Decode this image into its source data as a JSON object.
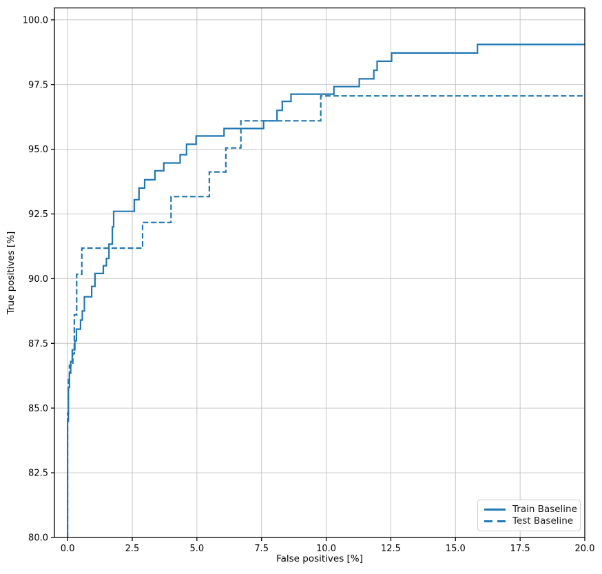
{
  "chart_data": {
    "type": "line",
    "subtype": "step-curves",
    "title": "",
    "xlabel": "False positives [%]",
    "ylabel": "True positives [%]",
    "xlim": [
      -0.51,
      20.0
    ],
    "ylim": [
      80.0,
      100.46
    ],
    "grid": true,
    "legend_position": "lower right",
    "x_ticks": {
      "values": [
        0.0,
        2.5,
        5.0,
        7.5,
        10.0,
        12.5,
        15.0,
        17.5,
        20.0
      ],
      "labels": [
        "0.0",
        "2.5",
        "5.0",
        "7.5",
        "10.0",
        "12.5",
        "15.0",
        "17.5",
        "20.0"
      ]
    },
    "y_ticks": {
      "values": [
        80.0,
        82.5,
        85.0,
        87.5,
        90.0,
        92.5,
        95.0,
        97.5,
        100.0
      ],
      "labels": [
        "80.0",
        "82.5",
        "85.0",
        "87.5",
        "90.0",
        "92.5",
        "95.0",
        "97.5",
        "100.0"
      ]
    },
    "colors": {
      "line": "#1f77b4",
      "grid": "#c6c6c6",
      "spine": "#000000",
      "tick_text": "#000000",
      "background": "#ffffff"
    },
    "series": [
      {
        "name": "Train Baseline",
        "id": "train-baseline",
        "style": "solid",
        "color": "#1f77b4",
        "points": [
          [
            0.0,
            80.0
          ],
          [
            0.0,
            84.5
          ],
          [
            0.03,
            84.5
          ],
          [
            0.03,
            85.8
          ],
          [
            0.07,
            85.8
          ],
          [
            0.07,
            86.35
          ],
          [
            0.12,
            86.35
          ],
          [
            0.12,
            86.8
          ],
          [
            0.18,
            86.8
          ],
          [
            0.18,
            87.25
          ],
          [
            0.28,
            87.25
          ],
          [
            0.28,
            87.6
          ],
          [
            0.34,
            87.6
          ],
          [
            0.34,
            88.05
          ],
          [
            0.5,
            88.05
          ],
          [
            0.5,
            88.4
          ],
          [
            0.57,
            88.4
          ],
          [
            0.57,
            88.75
          ],
          [
            0.65,
            88.75
          ],
          [
            0.65,
            89.3
          ],
          [
            0.93,
            89.3
          ],
          [
            0.93,
            89.7
          ],
          [
            1.06,
            89.7
          ],
          [
            1.06,
            90.2
          ],
          [
            1.38,
            90.2
          ],
          [
            1.38,
            90.5
          ],
          [
            1.5,
            90.5
          ],
          [
            1.5,
            90.78
          ],
          [
            1.6,
            90.78
          ],
          [
            1.6,
            91.33
          ],
          [
            1.73,
            91.33
          ],
          [
            1.73,
            92.0
          ],
          [
            1.78,
            92.0
          ],
          [
            1.78,
            92.6
          ],
          [
            2.58,
            92.6
          ],
          [
            2.58,
            93.05
          ],
          [
            2.76,
            93.05
          ],
          [
            2.76,
            93.5
          ],
          [
            2.98,
            93.5
          ],
          [
            2.98,
            93.82
          ],
          [
            3.38,
            93.82
          ],
          [
            3.38,
            94.17
          ],
          [
            3.72,
            94.17
          ],
          [
            3.72,
            94.47
          ],
          [
            4.35,
            94.47
          ],
          [
            4.35,
            94.79
          ],
          [
            4.6,
            94.79
          ],
          [
            4.6,
            95.19
          ],
          [
            4.97,
            95.19
          ],
          [
            4.97,
            95.51
          ],
          [
            6.05,
            95.51
          ],
          [
            6.05,
            95.8
          ],
          [
            7.58,
            95.8
          ],
          [
            7.58,
            96.1
          ],
          [
            8.1,
            96.1
          ],
          [
            8.1,
            96.5
          ],
          [
            8.3,
            96.5
          ],
          [
            8.3,
            96.85
          ],
          [
            8.64,
            96.85
          ],
          [
            8.64,
            97.13
          ],
          [
            10.3,
            97.13
          ],
          [
            10.3,
            97.42
          ],
          [
            11.28,
            97.42
          ],
          [
            11.28,
            97.72
          ],
          [
            11.84,
            97.72
          ],
          [
            11.84,
            98.05
          ],
          [
            11.97,
            98.05
          ],
          [
            11.97,
            98.4
          ],
          [
            12.53,
            98.4
          ],
          [
            12.53,
            98.72
          ],
          [
            15.85,
            98.72
          ],
          [
            15.85,
            99.05
          ],
          [
            20.0,
            99.05
          ]
        ]
      },
      {
        "name": "Test Baseline",
        "id": "test-baseline",
        "style": "dashed",
        "color": "#1f77b4",
        "points": [
          [
            0.0,
            80.0
          ],
          [
            0.0,
            84.8
          ],
          [
            0.03,
            84.8
          ],
          [
            0.03,
            86.1
          ],
          [
            0.07,
            86.1
          ],
          [
            0.07,
            86.65
          ],
          [
            0.2,
            86.65
          ],
          [
            0.2,
            87.1
          ],
          [
            0.26,
            87.1
          ],
          [
            0.26,
            88.6
          ],
          [
            0.35,
            88.6
          ],
          [
            0.35,
            90.17
          ],
          [
            0.55,
            90.17
          ],
          [
            0.55,
            91.18
          ],
          [
            2.9,
            91.18
          ],
          [
            2.9,
            92.17
          ],
          [
            4.0,
            92.17
          ],
          [
            4.0,
            93.17
          ],
          [
            5.48,
            93.17
          ],
          [
            5.48,
            94.12
          ],
          [
            6.12,
            94.12
          ],
          [
            6.12,
            95.05
          ],
          [
            6.7,
            95.05
          ],
          [
            6.7,
            96.1
          ],
          [
            9.79,
            96.1
          ],
          [
            9.79,
            97.06
          ],
          [
            20.0,
            97.06
          ]
        ]
      }
    ]
  }
}
